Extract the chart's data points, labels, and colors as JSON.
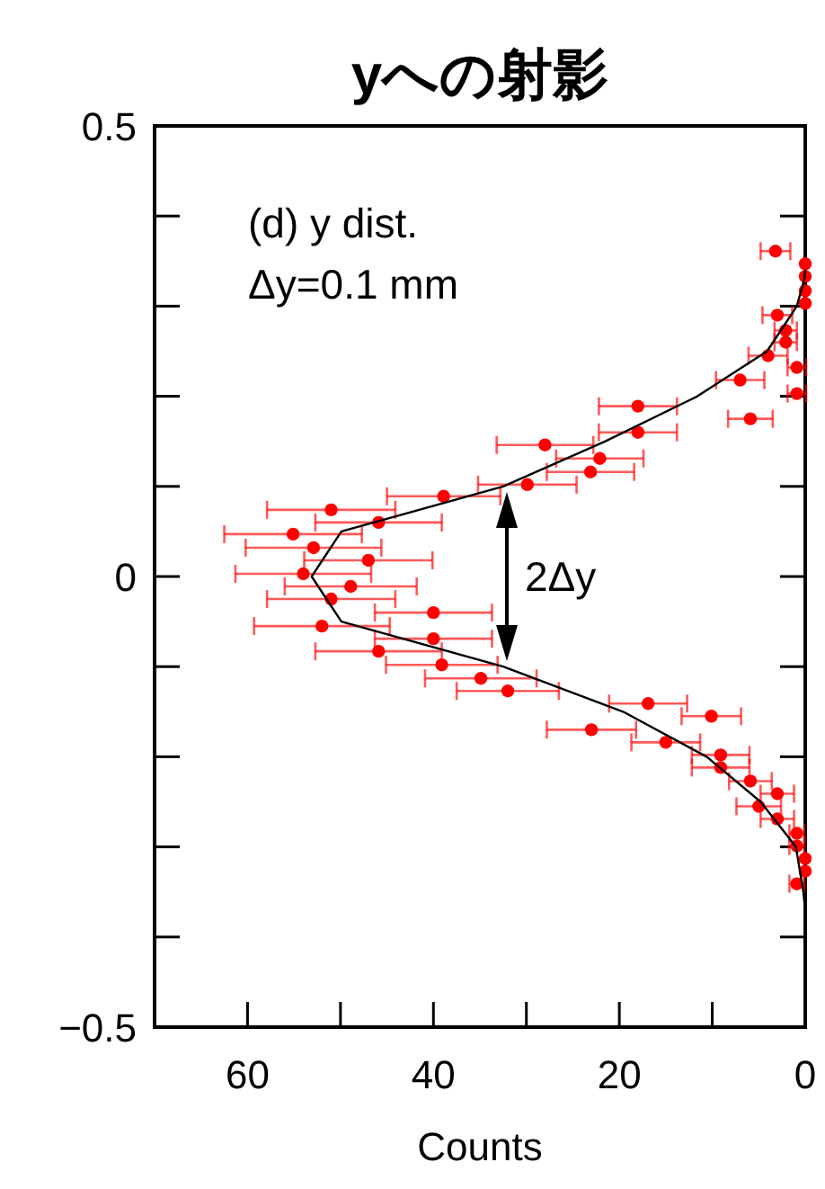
{
  "chart_data": {
    "type": "scatter",
    "title": "yへの射影",
    "xlabel": "Counts",
    "xlim": [
      70,
      0
    ],
    "xticks": [
      60,
      {
        "value": 50,
        "label": null
      },
      40,
      {
        "value": 30,
        "label": null
      },
      20,
      {
        "value": 10,
        "label": null
      },
      0
    ],
    "ylim": [
      -0.5,
      0.5
    ],
    "yticks": [
      0.5,
      {
        "value": 0.4,
        "label": null
      },
      {
        "value": 0.3,
        "label": null
      },
      {
        "value": 0.2,
        "label": null
      },
      {
        "value": 0.1,
        "label": null
      },
      0,
      {
        "value": -0.1,
        "label": null
      },
      {
        "value": -0.2,
        "label": null
      },
      {
        "value": -0.3,
        "label": null
      },
      {
        "value": -0.4,
        "label": null
      },
      -0.5
    ],
    "marker": "circle",
    "annotations": [
      "(d) y dist.",
      "Δy=0.1 mm",
      "2Δy"
    ],
    "series": [
      {
        "type": "line",
        "color": "#000000",
        "marker": "none",
        "x": [
          0,
          0.1,
          0.9,
          4.1,
          11.6,
          21.5,
          32.5,
          49.9,
          53.1,
          49.9,
          32.5,
          19.6,
          10.6,
          4.8,
          1.0,
          0.2,
          0
        ],
        "values": [
          0.34,
          0.33,
          0.3,
          0.25,
          0.2,
          0.15,
          0.1,
          0.05,
          0,
          -0.05,
          -0.1,
          -0.15,
          -0.2,
          -0.25,
          -0.3,
          -0.35,
          -0.37
        ]
      },
      {
        "color": "#ff0000",
        "x": [
          3.2,
          0,
          0,
          0,
          0,
          3.0,
          2.1,
          2.1,
          4.0,
          0.9,
          7.0,
          0.9,
          18.0,
          5.9,
          18.0,
          28.0,
          22.1,
          23.1,
          29.9,
          38.9,
          51.0,
          45.9,
          55.1,
          52.9,
          47.0,
          54.0,
          48.9,
          51.0,
          40.0,
          52.0,
          40.0,
          45.9,
          39.1,
          34.9,
          32.0,
          16.9,
          10.1,
          23.0,
          15.0,
          9.1,
          9.1,
          5.9,
          3.0,
          5.0,
          3.0,
          0.9,
          0.9,
          0,
          0,
          0.9
        ],
        "values": [
          0.361,
          0.347,
          0.333,
          0.317,
          0.303,
          0.29,
          0.273,
          0.26,
          0.245,
          0.232,
          0.218,
          0.203,
          0.189,
          0.175,
          0.16,
          0.146,
          0.131,
          0.116,
          0.102,
          0.089,
          0.074,
          0.06,
          0.047,
          0.032,
          0.018,
          0.003,
          -0.011,
          -0.025,
          -0.04,
          -0.055,
          -0.069,
          -0.083,
          -0.098,
          -0.113,
          -0.127,
          -0.141,
          -0.155,
          -0.17,
          -0.184,
          -0.198,
          -0.212,
          -0.227,
          -0.241,
          -0.255,
          -0.269,
          -0.285,
          -0.299,
          -0.313,
          -0.327,
          -0.341
        ],
        "xerrors": [
          1.6,
          null,
          null,
          null,
          null,
          1.6,
          1.2,
          1.2,
          2.1,
          1.0,
          2.6,
          1.0,
          4.2,
          2.4,
          4.2,
          5.2,
          4.7,
          4.7,
          5.3,
          6.1,
          6.9,
          6.8,
          7.4,
          7.3,
          6.9,
          7.3,
          7.1,
          6.9,
          6.3,
          7.3,
          6.3,
          6.8,
          6.0,
          6.0,
          5.5,
          4.2,
          3.2,
          4.8,
          3.7,
          3.1,
          3.1,
          2.3,
          1.8,
          2.4,
          1.8,
          0.8,
          0.8,
          null,
          null,
          0.8
        ]
      }
    ]
  }
}
